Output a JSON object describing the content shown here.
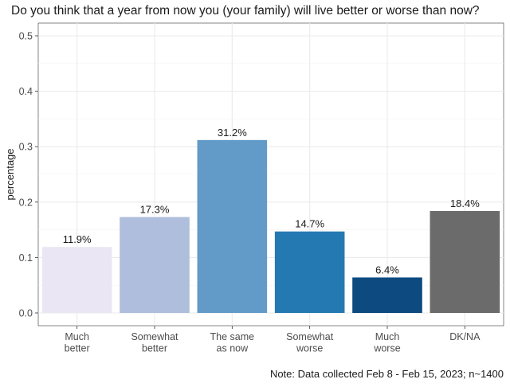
{
  "chart_data": {
    "type": "bar",
    "title": "Do you think that a year from now you (your family) will live better or worse than now?",
    "ylabel": "percentage",
    "xlabel": "",
    "ylim": [
      0,
      0.5
    ],
    "yticks": [
      0.0,
      0.1,
      0.2,
      0.3,
      0.4,
      0.5
    ],
    "ytick_labels": [
      "0.0",
      "0.1",
      "0.2",
      "0.3",
      "0.4",
      "0.5"
    ],
    "grid": true,
    "categories": [
      [
        "Much",
        "better"
      ],
      [
        "Somewhat",
        "better"
      ],
      [
        "The same",
        "as now"
      ],
      [
        "Somewhat",
        "worse"
      ],
      [
        "Much",
        "worse"
      ],
      [
        "DK/NA"
      ]
    ],
    "values": [
      0.119,
      0.173,
      0.312,
      0.147,
      0.064,
      0.184
    ],
    "data_labels": [
      "11.9%",
      "17.3%",
      "31.2%",
      "14.7%",
      "6.4%",
      "18.4%"
    ],
    "colors": [
      "#ebe6f4",
      "#afbedc",
      "#639bc8",
      "#2479b3",
      "#0c4a80",
      "#6b6b6b"
    ],
    "note": "Note: Data collected Feb 8 - Feb 15, 2023; n~1400"
  }
}
